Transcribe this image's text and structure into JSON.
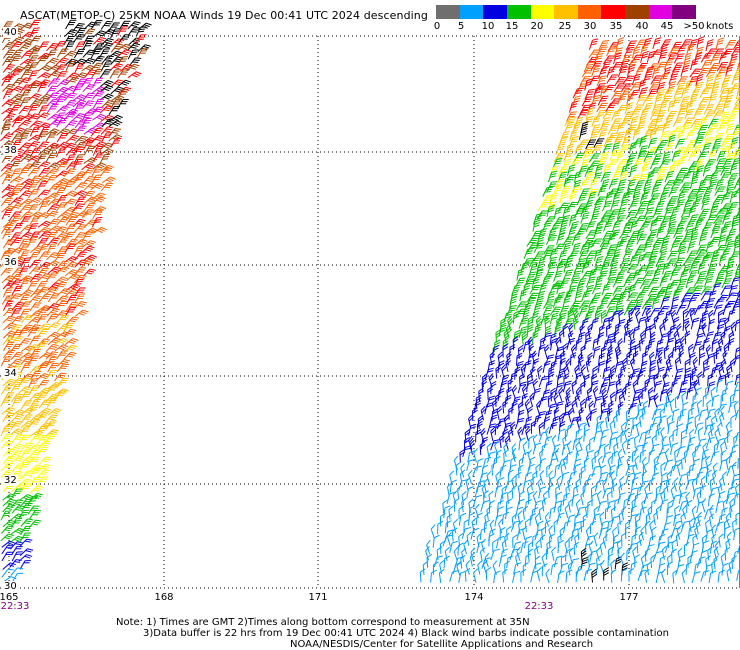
{
  "title": "ASCAT(METOP-C) 25KM NOAA Winds  19 Dec 00:41 UTC 2024 descending",
  "legend": {
    "ticks": [
      "0",
      "5",
      "10",
      "15",
      "20",
      "25",
      "30",
      "35",
      "40",
      "45",
      ">50"
    ],
    "unit": "knots",
    "colors": [
      "#6f6f6f",
      "#00a0ff",
      "#0000e0",
      "#00c000",
      "#ffff00",
      "#ffc000",
      "#ff6000",
      "#ff0000",
      "#a04000",
      "#e000e0",
      "#800080"
    ]
  },
  "lat_labels": [
    "40",
    "38",
    "36",
    "34",
    "32",
    "30"
  ],
  "lon_labels": [
    "165",
    "168",
    "171",
    "174",
    "177"
  ],
  "pass_times": [
    "22:33",
    "22:33"
  ],
  "notes": {
    "line1": "Note: 1) Times are GMT 2)Times along bottom correspond to measurement at 35N",
    "line2": "3)Data buffer is 22 hrs from 19 Dec 00:41 UTC 2024 4) Black wind barbs indicate possible contamination",
    "line3": "NOAA/NESDIS/Center for Satellite Applications and Research"
  }
}
